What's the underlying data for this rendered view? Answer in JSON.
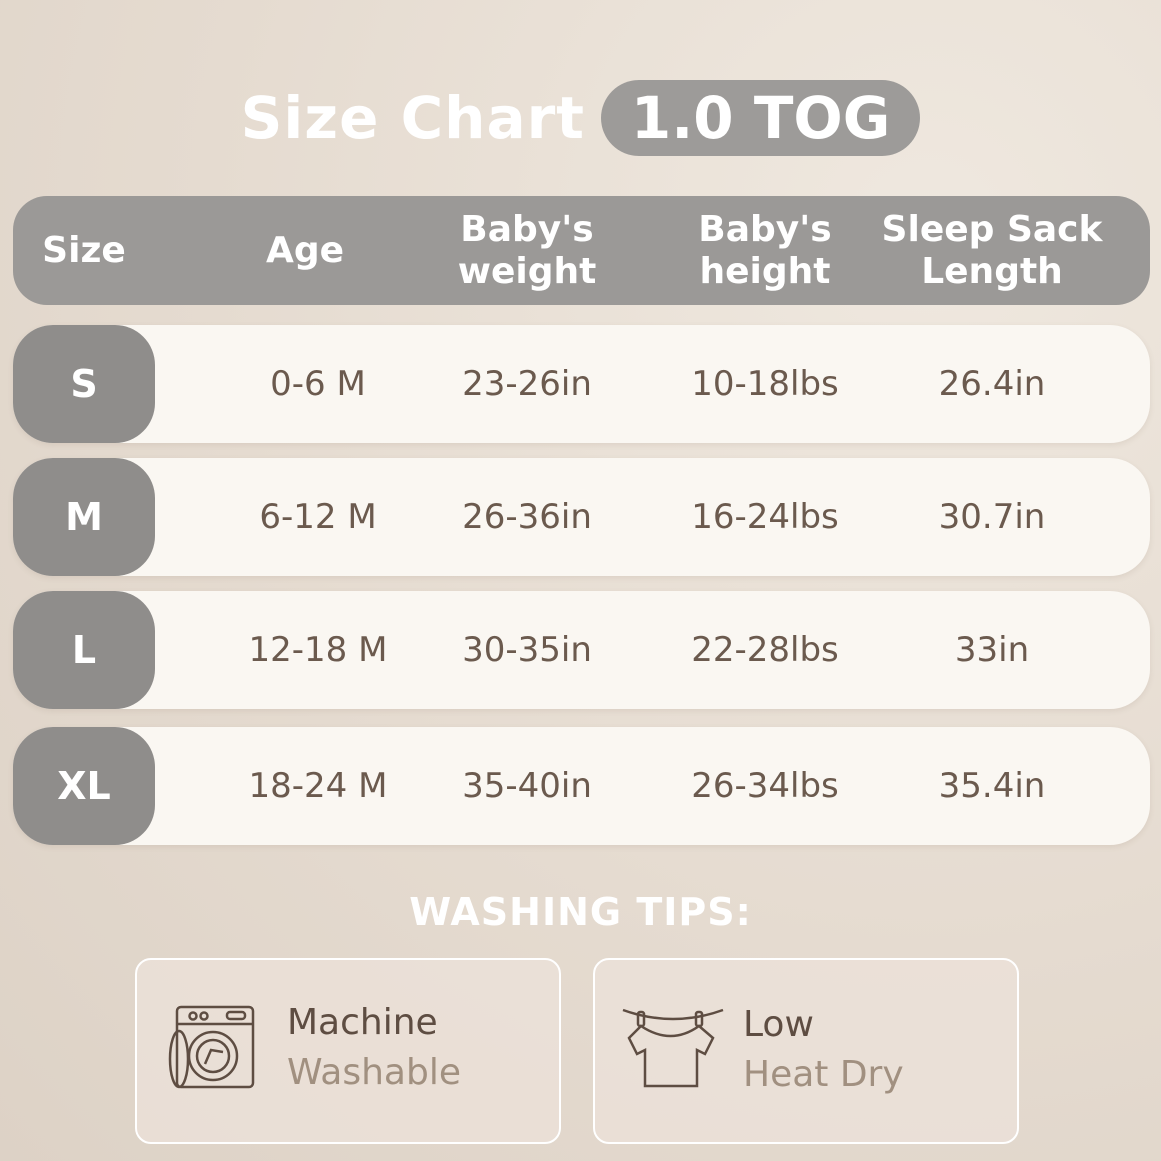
{
  "title": {
    "text": "Size Chart",
    "badge": "1.0 TOG"
  },
  "table": {
    "headers": [
      "Size",
      "Age",
      "Baby's\nweight",
      "Baby's\nheight",
      "Sleep Sack\nLength"
    ],
    "rows": [
      {
        "size": "S",
        "age": "0-6 M",
        "weight": "23-26in",
        "height": "10-18lbs",
        "length": "26.4in"
      },
      {
        "size": "M",
        "age": "6-12 M",
        "weight": "26-36in",
        "height": "16-24lbs",
        "length": "30.7in"
      },
      {
        "size": "L",
        "age": "12-18 M",
        "weight": "30-35in",
        "height": "22-28lbs",
        "length": "33in"
      },
      {
        "size": "XL",
        "age": "18-24 M",
        "weight": "35-40in",
        "height": "26-34lbs",
        "length": "35.4in"
      }
    ]
  },
  "washing": {
    "title": "WASHING TIPS:",
    "tips": [
      {
        "icon": "washing-machine-icon",
        "line1": "Machine",
        "line2": "Washable"
      },
      {
        "icon": "clothesline-shirt-icon",
        "line1": "Low",
        "line2": "Heat Dry"
      }
    ]
  },
  "colors": {
    "header": "#9b9997",
    "size_pill": "#8f8d8b",
    "row": "#faf7f2",
    "text": "#6b5a4e"
  }
}
